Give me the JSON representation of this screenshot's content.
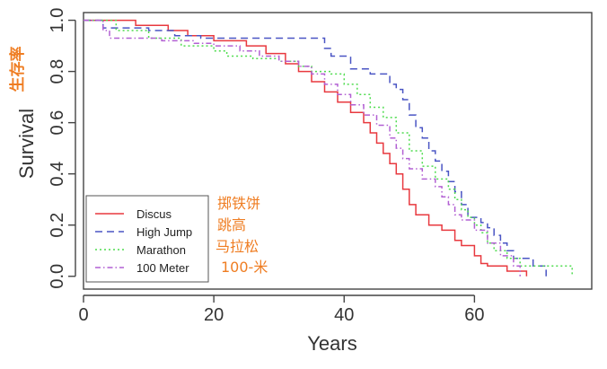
{
  "chart_data": {
    "type": "line",
    "subtype": "kaplan-meier step survival",
    "xlabel": "Years",
    "ylabel": "Survival",
    "ylabel_annotation": "生存率",
    "xlim": [
      0,
      78
    ],
    "ylim": [
      -0.05,
      1.03
    ],
    "xticks": [
      0,
      20,
      40,
      60
    ],
    "yticks": [
      0.0,
      0.2,
      0.4,
      0.6,
      0.8,
      1.0
    ],
    "xtick_labels": [
      "0",
      "20",
      "40",
      "60"
    ],
    "ytick_labels": [
      "0.0",
      "0.2",
      "0.4",
      "0.6",
      "0.8",
      "1.0"
    ],
    "grid": false,
    "legend_position": "bottom-left",
    "series": [
      {
        "name": "Discus",
        "annotation": "掷铁饼",
        "color": "#e8393f",
        "dash": "solid",
        "steps": [
          [
            0,
            1.0
          ],
          [
            8,
            0.98
          ],
          [
            13,
            0.96
          ],
          [
            16,
            0.94
          ],
          [
            20,
            0.92
          ],
          [
            25,
            0.9
          ],
          [
            28,
            0.87
          ],
          [
            31,
            0.83
          ],
          [
            33,
            0.8
          ],
          [
            35,
            0.76
          ],
          [
            37,
            0.72
          ],
          [
            39,
            0.68
          ],
          [
            41,
            0.64
          ],
          [
            43,
            0.6
          ],
          [
            44,
            0.56
          ],
          [
            45,
            0.52
          ],
          [
            46,
            0.48
          ],
          [
            47,
            0.44
          ],
          [
            48,
            0.4
          ],
          [
            49,
            0.34
          ],
          [
            50,
            0.28
          ],
          [
            51,
            0.24
          ],
          [
            53,
            0.2
          ],
          [
            55,
            0.18
          ],
          [
            57,
            0.14
          ],
          [
            58,
            0.12
          ],
          [
            60,
            0.08
          ],
          [
            61,
            0.05
          ],
          [
            62,
            0.04
          ],
          [
            65,
            0.02
          ],
          [
            68,
            0.0
          ]
        ]
      },
      {
        "name": "High Jump",
        "annotation": "跳高",
        "color": "#4a55c4",
        "dash": "8,5",
        "steps": [
          [
            0,
            1.0
          ],
          [
            3,
            0.97
          ],
          [
            10,
            0.96
          ],
          [
            14,
            0.94
          ],
          [
            18,
            0.93
          ],
          [
            36,
            0.93
          ],
          [
            37,
            0.89
          ],
          [
            38,
            0.86
          ],
          [
            41,
            0.81
          ],
          [
            44,
            0.79
          ],
          [
            47,
            0.75
          ],
          [
            48,
            0.73
          ],
          [
            49,
            0.69
          ],
          [
            50,
            0.63
          ],
          [
            51,
            0.58
          ],
          [
            52,
            0.54
          ],
          [
            53,
            0.49
          ],
          [
            54,
            0.45
          ],
          [
            55,
            0.41
          ],
          [
            56,
            0.37
          ],
          [
            57,
            0.33
          ],
          [
            58,
            0.28
          ],
          [
            59,
            0.23
          ],
          [
            61,
            0.21
          ],
          [
            62,
            0.19
          ],
          [
            63,
            0.16
          ],
          [
            64,
            0.13
          ],
          [
            65,
            0.1
          ],
          [
            66,
            0.07
          ],
          [
            69,
            0.04
          ],
          [
            71,
            0.0
          ]
        ]
      },
      {
        "name": "Marathon",
        "annotation": "马拉松",
        "color": "#4fdc4f",
        "dash": "2,3",
        "steps": [
          [
            0,
            1.0
          ],
          [
            5,
            0.96
          ],
          [
            10,
            0.93
          ],
          [
            15,
            0.9
          ],
          [
            20,
            0.88
          ],
          [
            22,
            0.86
          ],
          [
            26,
            0.85
          ],
          [
            30,
            0.84
          ],
          [
            33,
            0.82
          ],
          [
            35,
            0.8
          ],
          [
            38,
            0.79
          ],
          [
            40,
            0.75
          ],
          [
            42,
            0.71
          ],
          [
            44,
            0.66
          ],
          [
            46,
            0.62
          ],
          [
            48,
            0.56
          ],
          [
            50,
            0.49
          ],
          [
            52,
            0.43
          ],
          [
            54,
            0.38
          ],
          [
            56,
            0.34
          ],
          [
            57,
            0.3
          ],
          [
            58,
            0.26
          ],
          [
            59,
            0.23
          ],
          [
            60,
            0.2
          ],
          [
            61,
            0.17
          ],
          [
            62,
            0.13
          ],
          [
            63,
            0.1
          ],
          [
            65,
            0.07
          ],
          [
            67,
            0.04
          ],
          [
            73,
            0.04
          ],
          [
            75,
            0.0
          ]
        ]
      },
      {
        "name": "100 Meter",
        "annotation": "100-米",
        "color": "#b260d3",
        "dash": "6,3,1.5,3",
        "steps": [
          [
            0,
            1.0
          ],
          [
            3,
            0.96
          ],
          [
            4,
            0.93
          ],
          [
            12,
            0.92
          ],
          [
            17,
            0.91
          ],
          [
            20,
            0.9
          ],
          [
            24,
            0.88
          ],
          [
            27,
            0.86
          ],
          [
            30,
            0.84
          ],
          [
            33,
            0.82
          ],
          [
            35,
            0.79
          ],
          [
            37,
            0.75
          ],
          [
            39,
            0.71
          ],
          [
            41,
            0.67
          ],
          [
            43,
            0.63
          ],
          [
            45,
            0.59
          ],
          [
            47,
            0.54
          ],
          [
            48,
            0.5
          ],
          [
            49,
            0.46
          ],
          [
            50,
            0.42
          ],
          [
            52,
            0.38
          ],
          [
            54,
            0.35
          ],
          [
            55,
            0.31
          ],
          [
            56,
            0.28
          ],
          [
            57,
            0.24
          ],
          [
            58,
            0.22
          ],
          [
            60,
            0.18
          ],
          [
            62,
            0.13
          ],
          [
            64,
            0.08
          ],
          [
            66,
            0.04
          ],
          [
            67,
            0.0
          ]
        ]
      }
    ]
  }
}
